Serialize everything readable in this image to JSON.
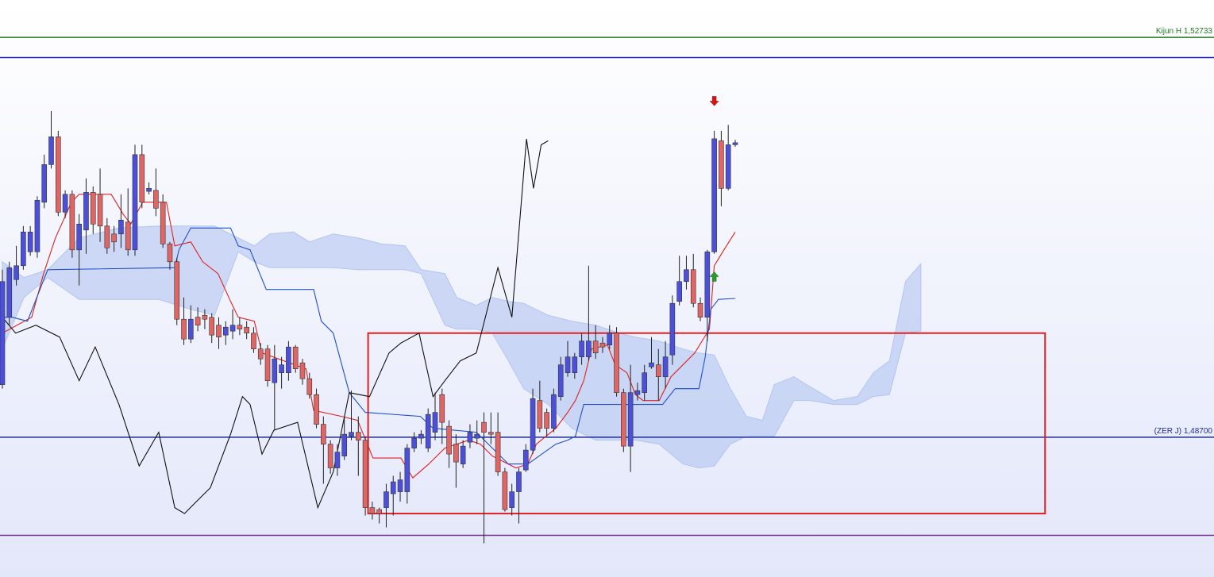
{
  "chart_data": {
    "type": "candlestick",
    "xlim": [
      -0.34,
      173.6
    ],
    "ylim": [
      1.4729,
      1.5311
    ],
    "candles": {
      "up_color": "#4b4fd9",
      "down_color": "#e06666",
      "open": [
        1.4923,
        1.4991,
        1.5029,
        1.5043,
        1.5057,
        1.5057,
        1.5107,
        1.5145,
        1.5173,
        1.5097,
        1.5115,
        1.5059,
        1.5079,
        1.5117,
        1.5115,
        1.5083,
        1.5075,
        1.5075,
        1.5087,
        1.5059,
        1.5155,
        1.5118,
        1.5119,
        1.5107,
        1.5065,
        1.5047,
        1.4989,
        1.4969,
        1.4991,
        1.4993,
        1.4991,
        1.4983,
        1.4973,
        1.4977,
        1.4983,
        1.4981,
        1.4975,
        1.4959,
        1.4959,
        1.4925,
        1.4935,
        1.4935,
        1.4961,
        1.4945,
        1.4929,
        1.4913,
        1.4883,
        1.4863,
        1.4839,
        1.4851,
        1.4871,
        1.4875,
        1.4867,
        1.4799,
        1.4797,
        1.4799,
        1.4813,
        1.4815,
        1.4815,
        1.4859,
        1.4869,
        1.4859,
        1.4875,
        1.4913,
        1.4881,
        1.4863,
        1.4843,
        1.4865,
        1.4869,
        1.4885,
        1.4875,
        1.4875,
        1.4835,
        1.4799,
        1.4815,
        1.4837,
        1.4857,
        1.4907,
        1.4895,
        1.4879,
        1.4911,
        1.4935,
        1.4935,
        1.4951,
        1.4951,
        1.4967,
        1.4965,
        1.4963,
        1.4975,
        1.4915,
        1.4861,
        1.4913,
        1.4915,
        1.4941,
        1.4943,
        1.4931,
        1.4953,
        1.5007,
        1.5027,
        1.5039,
        1.5005,
        1.4991,
        1.5057,
        1.5169,
        1.5121,
        1.5165
      ],
      "high": [
        1.5039,
        1.5047,
        1.5063,
        1.5083,
        1.5083,
        1.5113,
        1.5155,
        1.5199,
        1.5179,
        1.5119,
        1.5119,
        1.5095,
        1.5131,
        1.5123,
        1.5141,
        1.5091,
        1.5083,
        1.5115,
        1.5121,
        1.5165,
        1.5165,
        1.5127,
        1.5141,
        1.5115,
        1.5067,
        1.5051,
        1.5011,
        1.5003,
        1.5001,
        1.4999,
        1.4995,
        1.4991,
        1.4987,
        1.4999,
        1.4991,
        1.4987,
        1.4981,
        1.4965,
        1.4963,
        1.4963,
        1.4951,
        1.4967,
        1.4963,
        1.4949,
        1.4935,
        1.4919,
        1.4891,
        1.4867,
        1.4863,
        1.4891,
        1.4917,
        1.4891,
        1.4871,
        1.4805,
        1.4799,
        1.4823,
        1.4831,
        1.4835,
        1.4863,
        1.4875,
        1.4877,
        1.4899,
        1.4915,
        1.4919,
        1.4887,
        1.4873,
        1.4867,
        1.4883,
        1.4887,
        1.4895,
        1.4895,
        1.4895,
        1.4839,
        1.4823,
        1.4839,
        1.4863,
        1.4919,
        1.4927,
        1.4899,
        1.4919,
        1.4951,
        1.4967,
        1.4955,
        1.4975,
        1.5043,
        1.4983,
        1.4971,
        1.4983,
        1.4981,
        1.4919,
        1.4943,
        1.4925,
        1.4943,
        1.4971,
        1.4959,
        1.4967,
        1.5013,
        1.5053,
        1.5053,
        1.5055,
        1.5011,
        1.5059,
        1.5179,
        1.5179,
        1.5185,
        1.517
      ],
      "low": [
        1.4919,
        1.4983,
        1.5023,
        1.5039,
        1.5053,
        1.5051,
        1.5101,
        1.5141,
        1.5093,
        1.5091,
        1.5051,
        1.5023,
        1.5055,
        1.5075,
        1.5067,
        1.5055,
        1.5057,
        1.5061,
        1.5053,
        1.5053,
        1.5101,
        1.5115,
        1.5093,
        1.5061,
        1.5039,
        1.4983,
        1.4963,
        1.4965,
        1.4977,
        1.4979,
        1.4965,
        1.4959,
        1.4963,
        1.4969,
        1.4973,
        1.4969,
        1.4955,
        1.4943,
        1.4921,
        1.4877,
        1.4919,
        1.4927,
        1.4935,
        1.4923,
        1.4909,
        1.4879,
        1.4823,
        1.4833,
        1.4831,
        1.4847,
        1.4867,
        1.4831,
        1.4791,
        1.4787,
        1.4783,
        1.4779,
        1.4791,
        1.4805,
        1.4803,
        1.4855,
        1.4863,
        1.4855,
        1.4867,
        1.4863,
        1.4839,
        1.4819,
        1.4839,
        1.4859,
        1.4863,
        1.4763,
        1.4863,
        1.4831,
        1.4795,
        1.4791,
        1.4783,
        1.4835,
        1.4853,
        1.4875,
        1.4871,
        1.4875,
        1.4907,
        1.4931,
        1.4929,
        1.4943,
        1.4947,
        1.4949,
        1.4955,
        1.4959,
        1.4911,
        1.4855,
        1.4835,
        1.4907,
        1.4907,
        1.4939,
        1.4907,
        1.4919,
        1.4943,
        1.5003,
        1.5019,
        1.5001,
        1.4987,
        1.4967,
        1.5055,
        1.5103,
        1.5119,
        1.5163
      ],
      "close": [
        1.5027,
        1.5041,
        1.5043,
        1.5077,
        1.5077,
        1.5109,
        1.5145,
        1.5173,
        1.5097,
        1.5115,
        1.5059,
        1.5085,
        1.5117,
        1.5085,
        1.5083,
        1.5061,
        1.5067,
        1.5089,
        1.5059,
        1.5155,
        1.5107,
        1.5121,
        1.5101,
        1.5065,
        1.5047,
        1.4989,
        1.4969,
        1.4989,
        1.4983,
        1.4989,
        1.4973,
        1.4971,
        1.4981,
        1.4983,
        1.4979,
        1.4975,
        1.4959,
        1.4949,
        1.4927,
        1.4949,
        1.4943,
        1.4961,
        1.4939,
        1.4929,
        1.4913,
        1.4883,
        1.4863,
        1.4839,
        1.4855,
        1.4873,
        1.4875,
        1.4867,
        1.4799,
        1.4793,
        1.4793,
        1.4815,
        1.4825,
        1.4827,
        1.4859,
        1.4869,
        1.4873,
        1.4893,
        1.4895,
        1.4885,
        1.4853,
        1.4845,
        1.4861,
        1.4875,
        1.4873,
        1.4875,
        1.4873,
        1.4835,
        1.4797,
        1.4815,
        1.4835,
        1.4857,
        1.4909,
        1.4879,
        1.4879,
        1.4913,
        1.4943,
        1.4951,
        1.4951,
        1.4967,
        1.4967,
        1.4955,
        1.4961,
        1.4975,
        1.4915,
        1.4861,
        1.4915,
        1.4917,
        1.4935,
        1.4945,
        1.4931,
        1.4951,
        1.5005,
        1.5027,
        1.5039,
        1.5005,
        1.4991,
        1.5057,
        1.5171,
        1.5121,
        1.5165,
        1.5167
      ]
    },
    "cloud": {
      "color": "#b3c5f0",
      "x": [
        0,
        3.1,
        6.5,
        11.0,
        16.7,
        22.4,
        27.0,
        30.4,
        33.8,
        36.1,
        38.3,
        41.7,
        44.0,
        47.4,
        50.9,
        54.3,
        57.7,
        60.0,
        63.4,
        65.1,
        67.9,
        70.2,
        72.5,
        74.7,
        78.2,
        81.6,
        85.0,
        88.4,
        90.7,
        94.1,
        97.5,
        99.8,
        102.0,
        104.3,
        106.6,
        108.9,
        110.6,
        113.4,
        115.7,
        119.1,
        122.5,
        124.8,
        127.1,
        129.4,
        131.6
      ],
      "span_a": [
        1.5047,
        1.5031,
        1.5039,
        1.5071,
        1.5081,
        1.5083,
        1.5083,
        1.5083,
        1.5071,
        1.5063,
        1.5075,
        1.5077,
        1.5067,
        1.5075,
        1.5071,
        1.5065,
        1.5063,
        1.5039,
        1.5035,
        1.5011,
        1.5003,
        1.5011,
        1.5007,
        1.5005,
        1.4993,
        1.4987,
        1.4983,
        1.4975,
        1.4971,
        1.4967,
        1.4959,
        1.4955,
        1.4953,
        1.4919,
        1.4891,
        1.4887,
        1.4923,
        1.4931,
        1.4921,
        1.4907,
        1.4911,
        1.4935,
        1.4947,
        1.5027,
        1.5045
      ],
      "span_b": [
        1.4959,
        1.5011,
        1.5031,
        1.5009,
        1.5009,
        1.5009,
        1.4999,
        1.4993,
        1.5057,
        1.5047,
        1.5041,
        1.5041,
        1.5041,
        1.5041,
        1.5039,
        1.5039,
        1.5039,
        1.5035,
        1.4983,
        1.4979,
        1.4979,
        1.4975,
        1.4947,
        1.4919,
        1.4903,
        1.4879,
        1.4867,
        1.4867,
        1.4867,
        1.4863,
        1.4843,
        1.4839,
        1.4841,
        1.4863,
        1.4871,
        1.4871,
        1.4871,
        1.4907,
        1.4907,
        1.4903,
        1.4903,
        1.4911,
        1.4913,
        1.4975,
        1.4977
      ]
    },
    "lines": [
      {
        "color": "#e02020",
        "x": [
          0,
          4.2,
          5.9,
          7.6,
          9.9,
          11.0,
          15.6,
          17.3,
          18.4,
          20.1,
          23.5,
          24.7,
          27.0,
          28.7,
          30.9,
          32.7,
          33.8,
          36.1,
          37.2,
          43.5,
          44.6,
          48.6,
          50.9,
          53.1,
          57.1,
          58.8,
          61.1,
          63.4,
          66.8,
          68.5,
          70.2,
          73.6,
          75.3,
          76.5,
          79.3,
          81.0,
          82.1,
          83.3,
          84.4,
          86.7,
          87.8,
          89.5,
          90.7,
          91.8,
          94.1,
          95.8,
          97.5,
          99.2,
          101.3,
          102.0,
          103.2,
          105.0
        ],
        "values": [
          1.4975,
          1.4991,
          1.5035,
          1.5071,
          1.5107,
          1.5115,
          1.5115,
          1.5095,
          1.5085,
          1.5107,
          1.5107,
          1.5063,
          1.5067,
          1.5047,
          1.5035,
          1.5007,
          1.4991,
          1.4987,
          1.4955,
          1.4939,
          1.4897,
          1.4891,
          1.4887,
          1.4849,
          1.4849,
          1.4829,
          1.4843,
          1.4859,
          1.4867,
          1.4863,
          1.4851,
          1.4839,
          1.4843,
          1.4863,
          1.4879,
          1.4895,
          1.4907,
          1.4927,
          1.4959,
          1.4963,
          1.4943,
          1.4935,
          1.4913,
          1.4907,
          1.4907,
          1.4931,
          1.4943,
          1.4955,
          1.4979,
          1.5043,
          1.5057,
          1.5077
        ]
      },
      {
        "color": "#1f4fc8",
        "x": [
          0,
          1.4,
          3.6,
          6.5,
          24.7,
          25.3,
          27.0,
          32.7,
          33.8,
          35.5,
          37.8,
          44.6,
          45.7,
          47.4,
          49.7,
          52.0,
          59.9,
          61.7,
          67.9,
          72.5,
          75.3,
          79.3,
          81.0,
          82.1,
          83.3,
          94.6,
          96.4,
          99.8,
          100.7,
          101.5,
          102.6,
          105.0
        ],
        "values": [
          1.4991,
          1.4991,
          1.4987,
          1.5039,
          1.5041,
          1.5059,
          1.5081,
          1.5081,
          1.5063,
          1.5059,
          1.5019,
          1.5019,
          1.4987,
          1.4975,
          1.4915,
          1.4895,
          1.4891,
          1.4879,
          1.4875,
          1.4843,
          1.4843,
          1.4863,
          1.4867,
          1.4871,
          1.4903,
          1.4903,
          1.4919,
          1.4919,
          1.4951,
          1.4999,
          1.5009,
          1.501
        ]
      },
      {
        "color": "#111111",
        "x": [
          0,
          1.9,
          4.8,
          8.2,
          11.0,
          13.3,
          16.7,
          19.6,
          22.4,
          24.7,
          26.1,
          27.5,
          29.8,
          32.7,
          34.4,
          35.5,
          37.2,
          38.9,
          42.3,
          45.2,
          47.4,
          49.7,
          52.6,
          55.4,
          57.1,
          59.7,
          61.7,
          63.4,
          65.6,
          67.9,
          71.0,
          73.0,
          75.1,
          76.1,
          77.2,
          78.2
        ],
        "values": [
          1.4991,
          1.4975,
          1.4983,
          1.4971,
          1.4927,
          1.4961,
          1.4903,
          1.4841,
          1.4875,
          1.4799,
          1.4793,
          1.4803,
          1.4819,
          1.4873,
          1.4911,
          1.4903,
          1.4853,
          1.4877,
          1.4885,
          1.4799,
          1.4835,
          1.4915,
          1.4911,
          1.4955,
          1.4965,
          1.4975,
          1.4911,
          1.4927,
          1.4947,
          1.4955,
          1.5041,
          1.4991,
          1.5171,
          1.5121,
          1.5165,
          1.5169
        ]
      }
    ],
    "levels": [
      {
        "value": 1.52733,
        "label": "Kijun H 1,52733",
        "color": "#1e7a1e"
      },
      {
        "value": 1.5253,
        "color": "#1a22c8"
      },
      {
        "value": 1.487,
        "label": "(ZER J) 1,48700",
        "color": "#1c2a9a"
      },
      {
        "value": 1.4771,
        "color": "#7a2a8a"
      }
    ],
    "box": {
      "x": [
        52.4,
        149.4
      ],
      "y": [
        1.4793,
        1.4975
      ],
      "color": "#e02020"
    },
    "signals": [
      {
        "x": 102,
        "y": 1.5209,
        "direction": "down",
        "color": "#e01010"
      },
      {
        "x": 102,
        "y": 1.5032,
        "direction": "up",
        "color": "#22a022"
      }
    ]
  }
}
